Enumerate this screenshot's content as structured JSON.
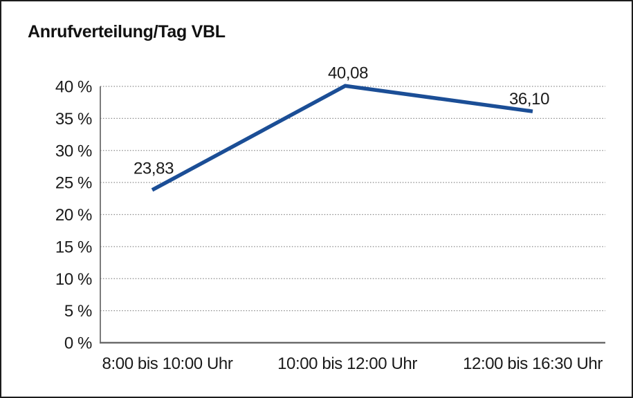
{
  "chart_data": {
    "type": "line",
    "title": "Anrufverteilung/Tag VBL",
    "categories": [
      "8:00 bis 10:00 Uhr",
      "10:00 bis 12:00 Uhr",
      "12:00 bis 16:30 Uhr"
    ],
    "values": [
      23.83,
      40.08,
      36.1
    ],
    "data_labels": [
      "23,83",
      "40,08",
      "36,10"
    ],
    "xlabel": "",
    "ylabel": "",
    "ylim": [
      0,
      40
    ],
    "ytick_step": 5,
    "yticks": [
      {
        "value": 0,
        "label": "0 %"
      },
      {
        "value": 5,
        "label": "5 %"
      },
      {
        "value": 10,
        "label": "10 %"
      },
      {
        "value": 15,
        "label": "15 %"
      },
      {
        "value": 20,
        "label": "20 %"
      },
      {
        "value": 25,
        "label": "25 %"
      },
      {
        "value": 30,
        "label": "30 %"
      },
      {
        "value": 35,
        "label": "35 %"
      },
      {
        "value": 40,
        "label": "40 %"
      }
    ],
    "grid": "horizontal-dotted",
    "legend": "none",
    "line_color": "#1b4e96",
    "text_color": "#1a1a1a"
  }
}
